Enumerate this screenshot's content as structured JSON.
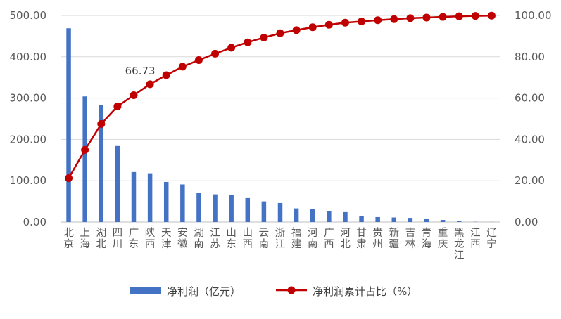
{
  "chart_data": {
    "type": "bar",
    "categories": [
      "北京",
      "上海",
      "湖北",
      "四川",
      "广东",
      "陕西",
      "天津",
      "安徽",
      "湖南",
      "江苏",
      "山东",
      "山西",
      "云南",
      "浙江",
      "福建",
      "河南",
      "广西",
      "河北",
      "甘肃",
      "贵州",
      "新疆",
      "吉林",
      "青海",
      "重庆",
      "黑龙江",
      "江西",
      "辽宁"
    ],
    "series": [
      {
        "name": "净利润（亿元）",
        "type": "bar",
        "axis": "left",
        "color": "#4472C4",
        "values": [
          469,
          304,
          283,
          184,
          121,
          118,
          97,
          91,
          70,
          67,
          66,
          58,
          50,
          46,
          33,
          31,
          27,
          24,
          15,
          12,
          11,
          10,
          7,
          5,
          3,
          0.5,
          0.2
        ]
      },
      {
        "name": "净利润累计占比（%）",
        "type": "line",
        "axis": "right",
        "color": "#C00000",
        "values": [
          21.2,
          34.9,
          47.5,
          56.0,
          61.4,
          66.73,
          71.1,
          75.2,
          78.4,
          81.5,
          84.4,
          87.0,
          89.3,
          91.4,
          92.9,
          94.3,
          95.5,
          96.5,
          97.1,
          97.7,
          98.2,
          98.7,
          99.0,
          99.3,
          99.6,
          99.8,
          99.9
        ]
      }
    ],
    "annotations": [
      {
        "series": 1,
        "index": 5,
        "text": "66.73"
      }
    ],
    "y_left": {
      "min": 0,
      "max": 500,
      "step": 100,
      "tick_labels": [
        "0.00",
        "100.00",
        "200.00",
        "300.00",
        "400.00",
        "500.00"
      ]
    },
    "y_right": {
      "min": 0,
      "max": 100,
      "step": 20,
      "tick_labels": [
        "0.00",
        "20.00",
        "40.00",
        "60.00",
        "80.00",
        "100.00"
      ]
    },
    "grid": true,
    "grid_color": "#D9D9D9",
    "legend_position": "bottom"
  }
}
